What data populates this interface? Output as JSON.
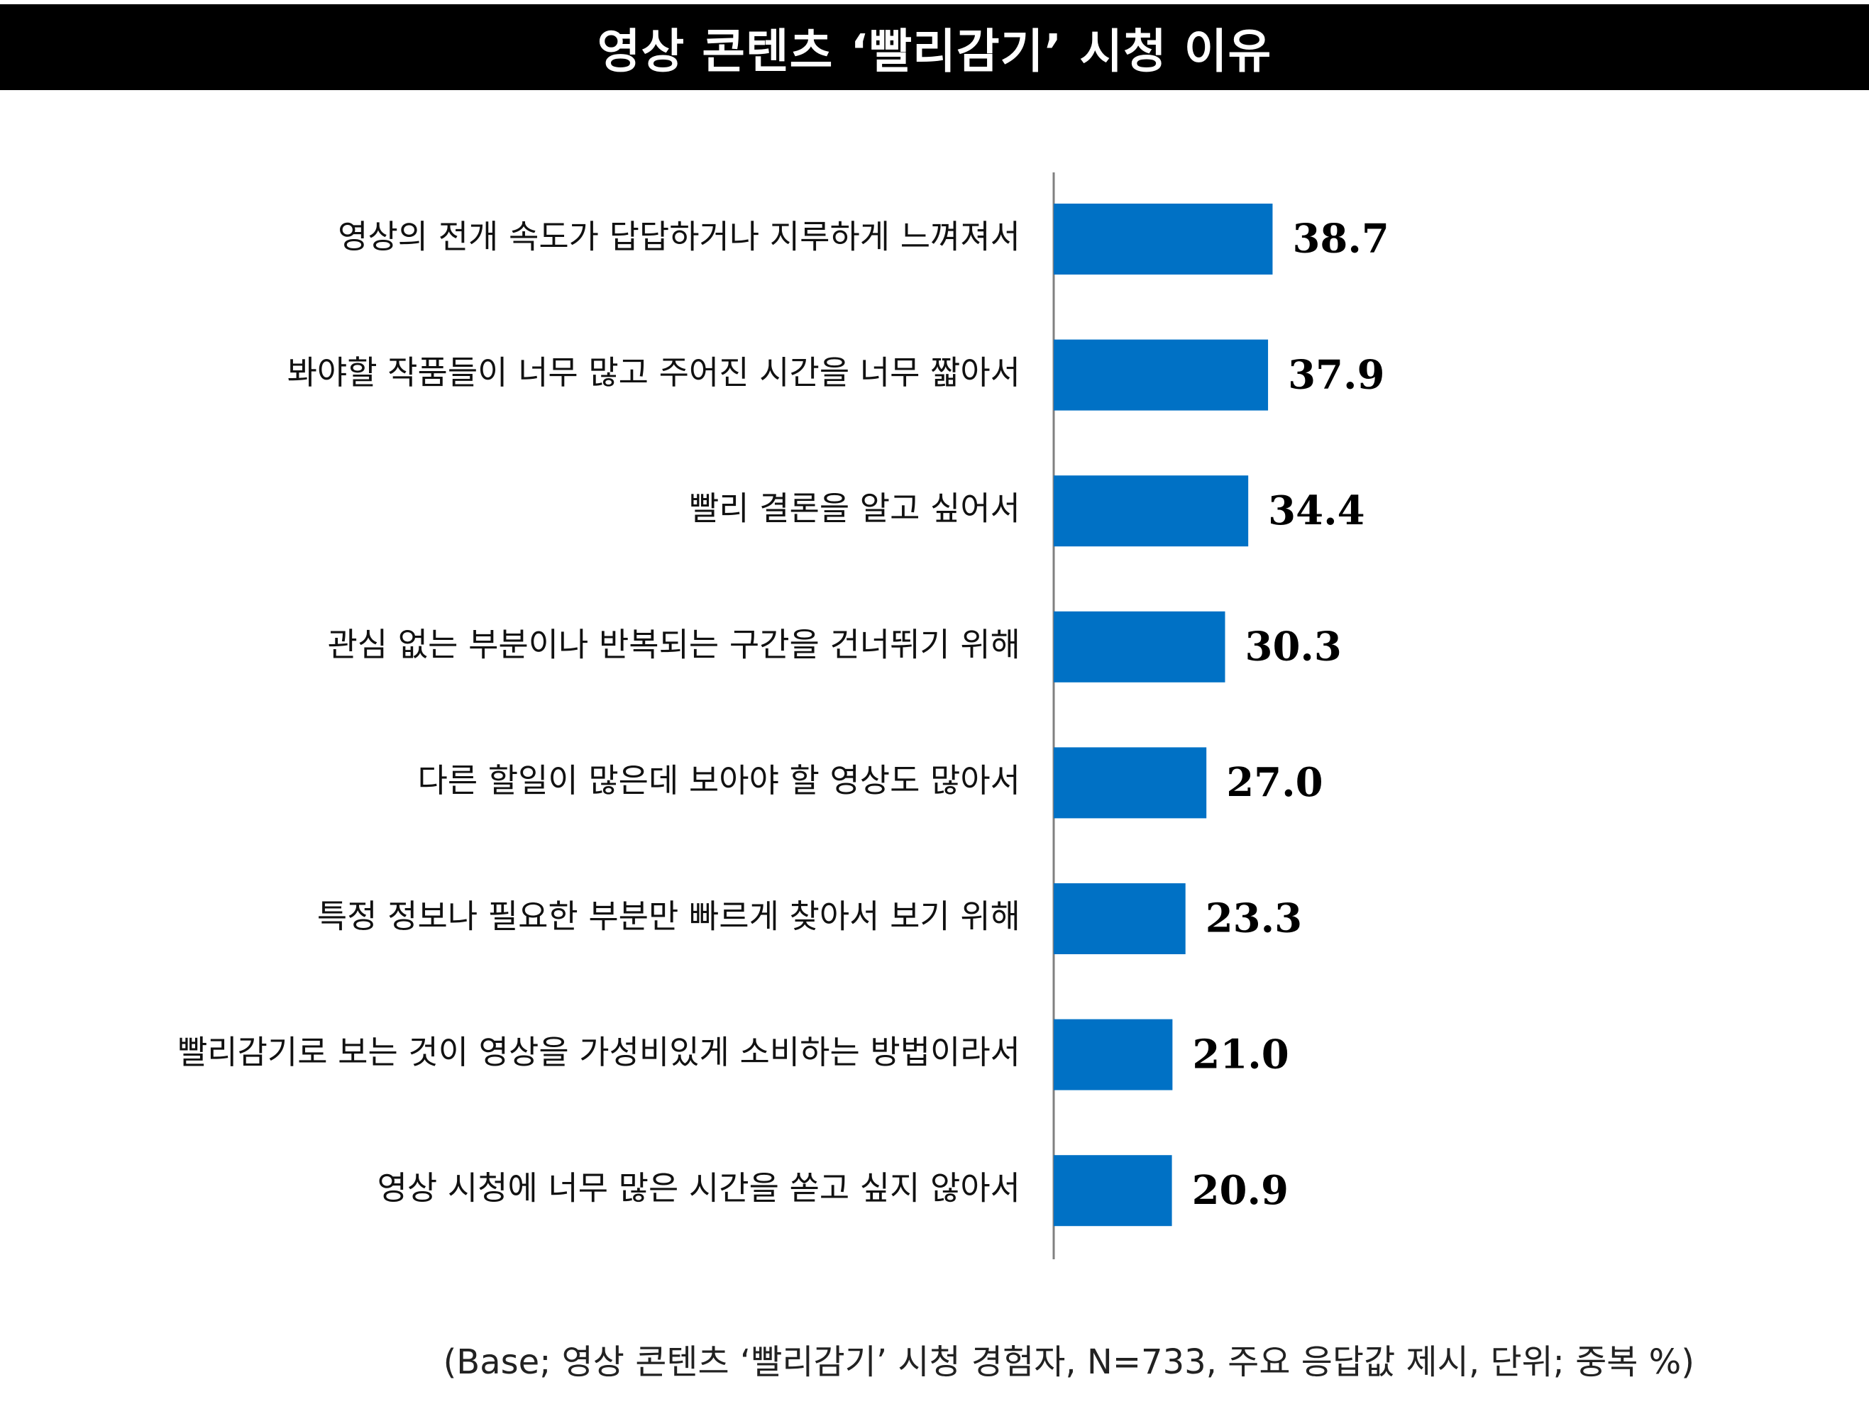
{
  "colors": {
    "bar": "#0071C5",
    "axis": "#808080",
    "title_bg": "#000000",
    "title_text": "#ffffff"
  },
  "header": {
    "title": "영상 콘텐츠 ‘빨리감기’ 시청 이유"
  },
  "footnote": "(Base; 영상 콘텐츠 ‘빨리감기’ 시청 경험자, N=733, 주요 응답값 제시, 단위; 중복 %)",
  "chart_data": {
    "type": "bar",
    "orientation": "horizontal",
    "title": "영상 콘텐츠 ‘빨리감기’ 시청 이유",
    "categories": [
      "영상의 전개 속도가 답답하거나 지루하게 느껴져서",
      "봐야할 작품들이 너무 많고 주어진 시간을 너무 짧아서",
      "빨리 결론을 알고 싶어서",
      "관심 없는 부분이나 반복되는 구간을 건너뛰기 위해",
      "다른 할일이 많은데 보아야 할 영상도 많아서",
      "특정 정보나 필요한 부분만 빠르게 찾아서 보기 위해",
      "빨리감기로 보는 것이 영상을 가성비있게 소비하는 방법이라서",
      "영상 시청에 너무 많은 시간을 쏟고 싶지 않아서"
    ],
    "values": [
      38.7,
      37.9,
      34.4,
      30.3,
      27.0,
      23.3,
      21.0,
      20.9
    ],
    "value_labels": [
      "38.7",
      "37.9",
      "34.4",
      "30.3",
      "27.0",
      "23.3",
      "21.0",
      "20.9"
    ],
    "xlim": [
      0,
      100
    ],
    "grid": false,
    "legend": "none"
  }
}
